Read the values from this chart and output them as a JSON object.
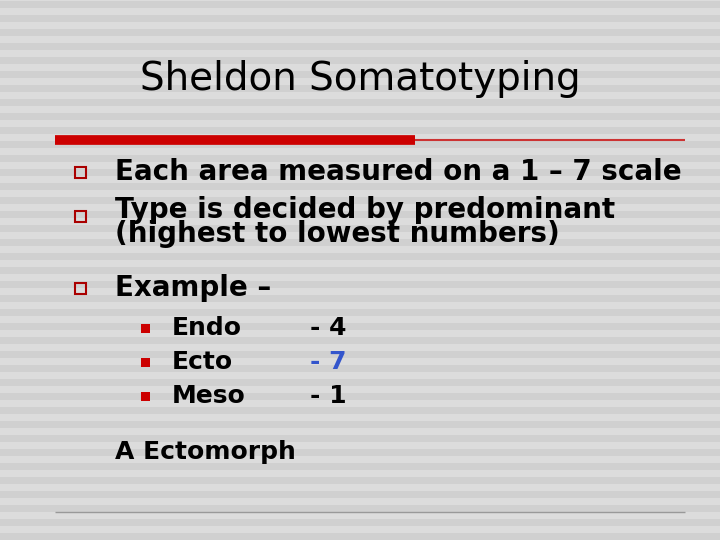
{
  "title": "Sheldon Somatotyping",
  "background_color": "#d8d8d8",
  "stripe_color1": "#d0d0d0",
  "stripe_color2": "#dcdcdc",
  "title_color": "#000000",
  "title_fontsize": 28,
  "divider_thick_color": "#cc0000",
  "divider_thin_color": "#cc3333",
  "bottom_line_color": "#999999",
  "bullet_color": "#aa0000",
  "sub_bullet_color": "#cc0000",
  "text_color": "#000000",
  "blue_color": "#3355cc",
  "bullet1": "Each area measured on a 1 – 7 scale",
  "bullet2_line1": "Type is decided by predominant",
  "bullet2_line2": "(highest to lowest numbers)",
  "bullet3": "Example –",
  "sub1_label": "Endo",
  "sub1_value": "- 4",
  "sub1_value_color": "#000000",
  "sub2_label": "Ecto",
  "sub2_value": "- 7",
  "sub2_value_color": "#3355cc",
  "sub3_label": "Meso",
  "sub3_value": "- 1",
  "sub3_value_color": "#000000",
  "conclusion": "A Ectomorph",
  "bullet_fontsize": 20,
  "sub_bullet_fontsize": 18,
  "conclusion_fontsize": 18
}
